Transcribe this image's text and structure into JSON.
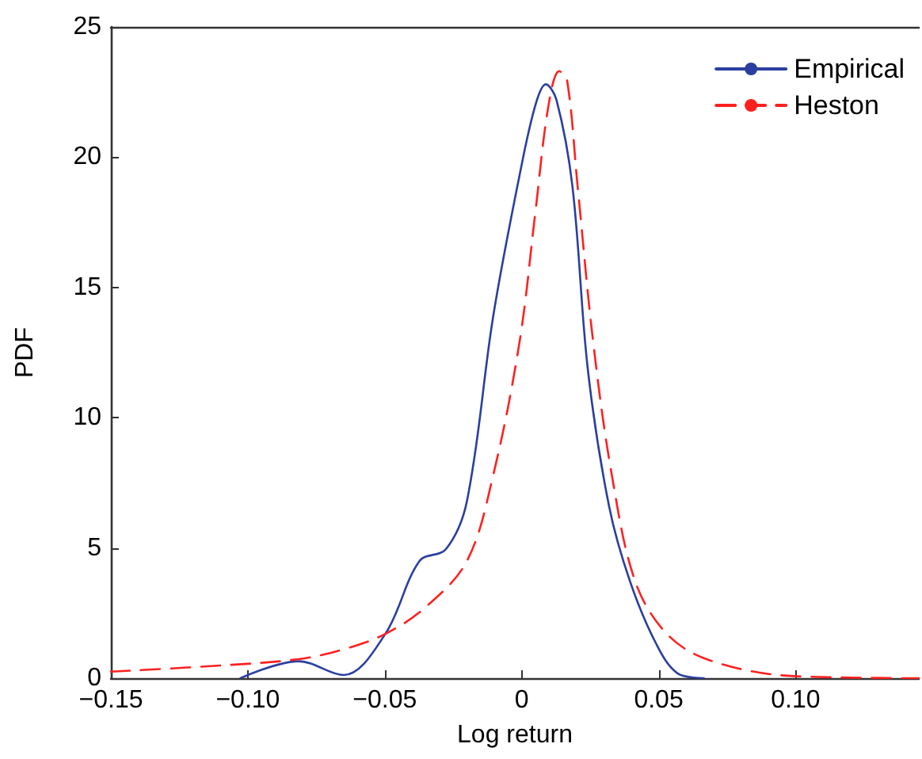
{
  "chart_data": {
    "type": "line",
    "xlabel": "Log return",
    "ylabel": "PDF",
    "xlim": [
      -0.15,
      0.145
    ],
    "xticks": [
      {
        "value": -0.15,
        "label": "−0.15"
      },
      {
        "value": -0.1,
        "label": "−0.10"
      },
      {
        "value": -0.05,
        "label": "−0.05"
      },
      0,
      0.05,
      {
        "value": 0.1,
        "label": "0.10"
      }
    ],
    "ylim": [
      0,
      25
    ],
    "yticks": [
      0,
      5,
      10,
      15,
      20,
      25
    ],
    "grid": false,
    "legend": "top right",
    "marker": "none",
    "series": [
      {
        "name": "Empirical",
        "color": "#2b3f9e",
        "line_style": "solid",
        "x": [
          -0.1027,
          -0.0815,
          -0.065,
          -0.0498,
          -0.0373,
          -0.0277,
          -0.02,
          -0.0104,
          -0.0008,
          0.005,
          0.0088,
          0.0127,
          0.0185,
          0.0242,
          0.0319,
          0.0396,
          0.0492,
          0.057,
          0.0665
        ],
        "values": [
          0,
          0.65,
          0.12,
          1.7,
          4.5,
          4.95,
          6.8,
          13.9,
          19.3,
          22.0,
          22.8,
          22.2,
          18.9,
          11.8,
          6.6,
          3.7,
          1.3,
          0.18,
          0
        ]
      },
      {
        "name": "Heston",
        "color": "#ff2020",
        "line_style": "dashed",
        "x": [
          -0.15,
          -0.116,
          -0.0815,
          -0.064,
          -0.0498,
          -0.0354,
          -0.02,
          -0.0104,
          -0.0008,
          0.005,
          0.0098,
          0.0137,
          0.0165,
          0.0204,
          0.0261,
          0.0329,
          0.0415,
          0.053,
          0.0685,
          0.0992,
          0.145
        ],
        "values": [
          0.25,
          0.45,
          0.73,
          1.14,
          1.7,
          2.7,
          4.5,
          7.8,
          12.9,
          17.9,
          22.0,
          23.3,
          23.0,
          18.9,
          12.9,
          7.8,
          3.7,
          1.7,
          0.69,
          0.08,
          0
        ]
      }
    ]
  }
}
